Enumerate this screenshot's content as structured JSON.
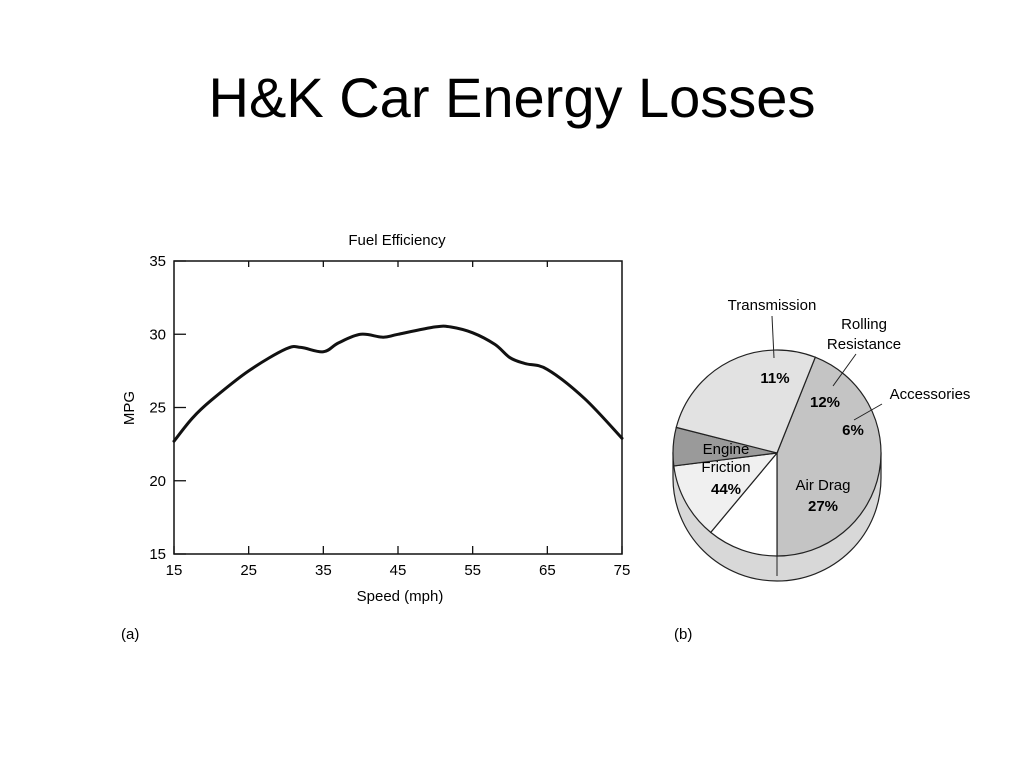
{
  "slide": {
    "title": "H&K Car Energy Losses"
  },
  "panels": {
    "a_label": "(a)",
    "b_label": "(b)"
  },
  "chart_data": [
    {
      "type": "line",
      "title": "Fuel Efficiency",
      "xlabel": "Speed (mph)",
      "ylabel": "MPG",
      "xlim": [
        15,
        75
      ],
      "ylim": [
        15,
        35
      ],
      "x_ticks": [
        15,
        25,
        35,
        45,
        55,
        65,
        75
      ],
      "y_ticks": [
        15,
        20,
        25,
        30,
        35
      ],
      "grid": false,
      "x": [
        15,
        17.5,
        20,
        25,
        30,
        32,
        35,
        37,
        40,
        43,
        45,
        50,
        52,
        55,
        58,
        60,
        62,
        65,
        70,
        75
      ],
      "series": [
        {
          "values": [
            22.7,
            24.3,
            25.5,
            27.5,
            29.0,
            29.1,
            28.8,
            29.4,
            30.0,
            29.8,
            30.0,
            30.5,
            30.5,
            30.1,
            29.3,
            28.4,
            28.0,
            27.6,
            25.6,
            22.9
          ]
        }
      ],
      "color": "#111111"
    },
    {
      "type": "pie",
      "categories": [
        "Engine Friction",
        "Transmission",
        "Rolling Resistance",
        "Accessories",
        "Air Drag"
      ],
      "values": [
        44,
        11,
        12,
        6,
        27
      ],
      "value_labels": [
        "44%",
        "11%",
        "12%",
        "6%",
        "27%"
      ],
      "label_lines": [
        "Engine",
        "Friction",
        "Rolling",
        "Resistance",
        "Air Drag"
      ],
      "colors": [
        "#c4c4c4",
        "#ffffff",
        "#f0f0f0",
        "#9a9a9a",
        "#e2e2e2"
      ]
    }
  ]
}
